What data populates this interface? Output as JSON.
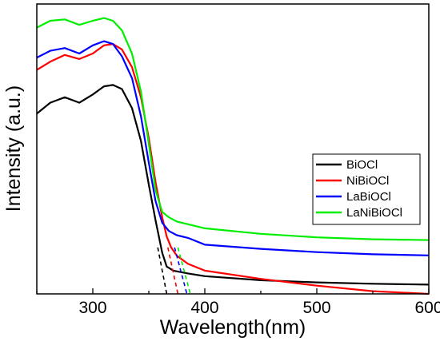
{
  "chart_data": {
    "type": "line",
    "xlabel": "Wavelength(nm)",
    "ylabel": "Intensity (a.u.)",
    "xlim": [
      250,
      600
    ],
    "ylim": [
      0,
      1
    ],
    "x_ticks": [
      300,
      400,
      500,
      600
    ],
    "x_tick_labels": [
      "300",
      "400",
      "500",
      "600"
    ],
    "y_ticks_labeled": false,
    "grid": false,
    "legend_position": "center-right",
    "series": [
      {
        "name": "BiOCl",
        "color": "#000000",
        "points": [
          [
            250,
            0.66
          ],
          [
            262,
            0.7
          ],
          [
            275,
            0.72
          ],
          [
            288,
            0.7
          ],
          [
            300,
            0.73
          ],
          [
            310,
            0.76
          ],
          [
            318,
            0.765
          ],
          [
            326,
            0.75
          ],
          [
            335,
            0.68
          ],
          [
            343,
            0.56
          ],
          [
            350,
            0.4
          ],
          [
            356,
            0.27
          ],
          [
            362,
            0.15
          ],
          [
            366,
            0.1
          ],
          [
            372,
            0.085
          ],
          [
            385,
            0.075
          ],
          [
            400,
            0.065
          ],
          [
            450,
            0.05
          ],
          [
            500,
            0.042
          ],
          [
            550,
            0.037
          ],
          [
            600,
            0.034
          ]
        ],
        "tangent": [
          [
            358,
            0.17
          ],
          [
            366,
            0.0
          ]
        ]
      },
      {
        "name": "NiBiOCl",
        "color": "#ff0000",
        "points": [
          [
            250,
            0.82
          ],
          [
            262,
            0.85
          ],
          [
            275,
            0.875
          ],
          [
            288,
            0.86
          ],
          [
            300,
            0.88
          ],
          [
            310,
            0.91
          ],
          [
            318,
            0.915
          ],
          [
            326,
            0.895
          ],
          [
            335,
            0.83
          ],
          [
            343,
            0.72
          ],
          [
            350,
            0.57
          ],
          [
            356,
            0.41
          ],
          [
            362,
            0.28
          ],
          [
            366,
            0.21
          ],
          [
            370,
            0.17
          ],
          [
            375,
            0.14
          ],
          [
            385,
            0.11
          ],
          [
            400,
            0.085
          ],
          [
            450,
            0.055
          ],
          [
            500,
            0.03
          ],
          [
            550,
            0.01
          ],
          [
            600,
            0.0
          ]
        ],
        "tangent": [
          [
            367,
            0.17
          ],
          [
            376,
            0.0
          ]
        ]
      },
      {
        "name": "LaBiOCl",
        "color": "#0000ff",
        "points": [
          [
            250,
            0.865
          ],
          [
            262,
            0.89
          ],
          [
            275,
            0.9
          ],
          [
            288,
            0.88
          ],
          [
            300,
            0.91
          ],
          [
            310,
            0.925
          ],
          [
            318,
            0.915
          ],
          [
            326,
            0.87
          ],
          [
            335,
            0.79
          ],
          [
            343,
            0.65
          ],
          [
            350,
            0.48
          ],
          [
            356,
            0.34
          ],
          [
            362,
            0.26
          ],
          [
            368,
            0.23
          ],
          [
            375,
            0.215
          ],
          [
            385,
            0.205
          ],
          [
            400,
            0.18
          ],
          [
            450,
            0.165
          ],
          [
            500,
            0.153
          ],
          [
            550,
            0.145
          ],
          [
            600,
            0.141
          ]
        ],
        "tangent": [
          [
            373,
            0.17
          ],
          [
            384,
            0.0
          ]
        ]
      },
      {
        "name": "LaNiBiOCl",
        "color": "#00ee00",
        "points": [
          [
            250,
            0.975
          ],
          [
            262,
            1.0
          ],
          [
            275,
            1.005
          ],
          [
            288,
            0.985
          ],
          [
            300,
            1.0
          ],
          [
            310,
            1.01
          ],
          [
            318,
            1.0
          ],
          [
            326,
            0.965
          ],
          [
            335,
            0.88
          ],
          [
            343,
            0.74
          ],
          [
            350,
            0.55
          ],
          [
            356,
            0.38
          ],
          [
            362,
            0.3
          ],
          [
            368,
            0.28
          ],
          [
            375,
            0.265
          ],
          [
            385,
            0.255
          ],
          [
            400,
            0.24
          ],
          [
            450,
            0.22
          ],
          [
            500,
            0.207
          ],
          [
            550,
            0.2
          ],
          [
            600,
            0.197
          ]
        ],
        "tangent": [
          [
            376,
            0.17
          ],
          [
            387,
            0.0
          ]
        ]
      }
    ]
  }
}
